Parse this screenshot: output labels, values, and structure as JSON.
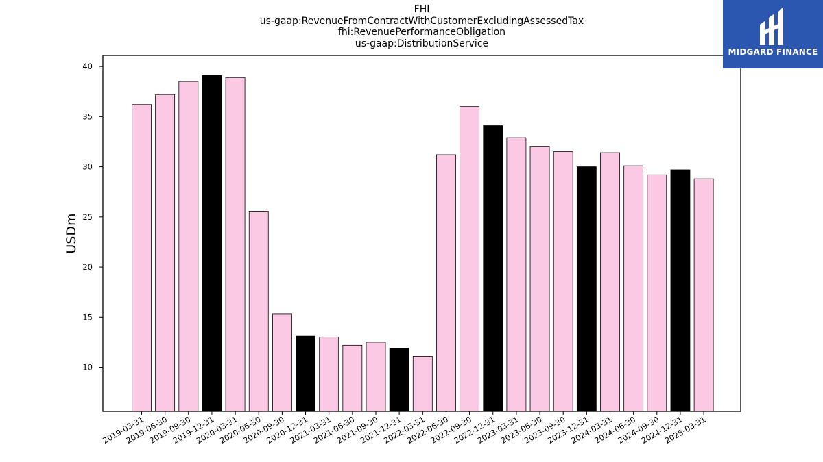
{
  "logo": {
    "text": "MIDGARD FINANCE",
    "color": "#2b57b0"
  },
  "chart_data": {
    "type": "bar",
    "title_lines": [
      "FHI",
      "us-gaap:RevenueFromContractWithCustomerExcludingAssessedTax",
      "fhi:RevenuePerformanceObligation",
      "us-gaap:DistributionService"
    ],
    "xlabel": "",
    "ylabel": "USDm",
    "ylim": [
      5.6,
      41.1
    ],
    "yticks": [
      10,
      15,
      20,
      25,
      30,
      35,
      40
    ],
    "grid": false,
    "legend": "none",
    "colors": {
      "quarter": "#fbc9e4",
      "year_end": "#000000",
      "edge": "#000000"
    },
    "categories": [
      "2019-03-31",
      "2019-06-30",
      "2019-09-30",
      "2019-12-31",
      "2020-03-31",
      "2020-06-30",
      "2020-09-30",
      "2020-12-31",
      "2021-03-31",
      "2021-06-30",
      "2021-09-30",
      "2021-12-31",
      "2022-03-31",
      "2022-06-30",
      "2022-09-30",
      "2022-12-31",
      "2023-03-31",
      "2023-06-30",
      "2023-09-30",
      "2023-12-31",
      "2024-03-31",
      "2024-06-30",
      "2024-09-30",
      "2024-12-31",
      "2025-03-31"
    ],
    "values": [
      36.2,
      37.2,
      38.5,
      39.1,
      38.9,
      25.5,
      15.3,
      13.1,
      13.0,
      12.2,
      12.5,
      11.9,
      11.1,
      31.2,
      36.0,
      34.1,
      32.9,
      32.0,
      31.5,
      30.0,
      31.4,
      30.1,
      29.2,
      29.7,
      28.8
    ]
  }
}
